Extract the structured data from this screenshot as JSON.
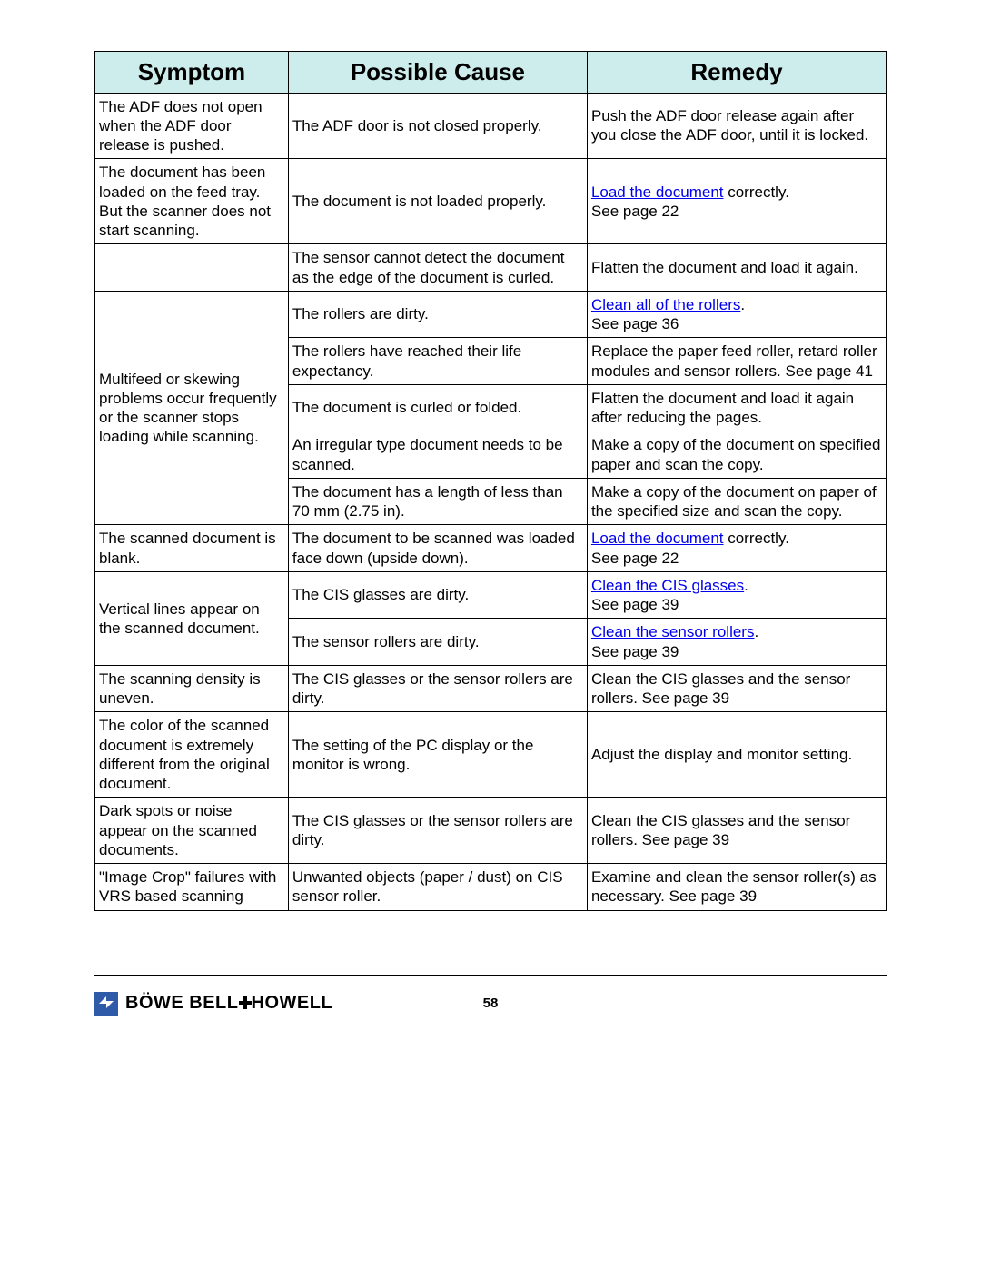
{
  "table": {
    "header_bg": "#cdecec",
    "columns": [
      "Symptom",
      "Possible Cause",
      "Remedy"
    ],
    "blocks": [
      {
        "symptom": "The ADF does not open when the ADF door release is pushed.",
        "rows": [
          {
            "cause": "The ADF door is not closed properly.",
            "remedy": "Push the ADF door release again after you close the ADF door, until it is locked."
          }
        ]
      },
      {
        "symptom": "The document has been loaded on the feed tray. But the scanner does not start scanning.",
        "rows": [
          {
            "cause": "The document is not loaded properly.",
            "remedy_link": "Load the document",
            "remedy_suffix": " correctly.",
            "remedy_line2": "See page 22"
          }
        ]
      },
      {
        "symptom": "",
        "rows": [
          {
            "cause": "The sensor cannot detect the document as the edge of the document is curled.",
            "remedy": "Flatten the document and load it again."
          }
        ]
      },
      {
        "symptom": "Multifeed or skewing problems occur frequently or the scanner stops loading while scanning.",
        "rows": [
          {
            "cause": "The rollers are dirty.",
            "remedy_link": "Clean all of the rollers",
            "remedy_suffix": ".",
            "remedy_line2": "See page 36"
          },
          {
            "cause": "The rollers have reached their life expectancy.",
            "remedy": "Replace the paper feed roller, retard roller modules and sensor rollers.  See page 41"
          },
          {
            "cause": "The document is curled or folded.",
            "remedy": "Flatten the document and load it again after reducing the pages."
          },
          {
            "cause": "An irregular type document needs to be scanned.",
            "remedy": "Make a copy of the document on specified paper and scan the copy."
          },
          {
            "cause": "The document has a length of less than 70 mm (2.75 in).",
            "remedy": "Make a copy of the document on paper of the specified size and scan the copy."
          }
        ]
      },
      {
        "symptom": "The scanned document is blank.",
        "rows": [
          {
            "cause": "The document to be scanned was loaded face down (upside down).",
            "remedy_link": "Load the document",
            "remedy_suffix": " correctly.",
            "remedy_line2": "See page 22"
          }
        ]
      },
      {
        "symptom": "Vertical lines appear on the scanned document.",
        "rows": [
          {
            "cause": "The CIS glasses are dirty.",
            "remedy_link": "Clean the CIS glasses",
            "remedy_suffix": ".",
            "remedy_line2": "See page 39"
          },
          {
            "cause": "The sensor rollers are dirty.",
            "remedy_link": "Clean the sensor rollers",
            "remedy_suffix": ".",
            "remedy_line2": "See page 39"
          }
        ]
      },
      {
        "symptom": "The scanning density is uneven.",
        "rows": [
          {
            "cause": "The CIS glasses or the sensor rollers are dirty.",
            "remedy": "Clean the CIS glasses and the sensor rollers.  See page 39"
          }
        ]
      },
      {
        "symptom": "The color of the scanned document is extremely different from the original document.",
        "rows": [
          {
            "cause": "The setting of the PC display or the monitor is wrong.",
            "remedy": "Adjust the display and monitor setting."
          }
        ]
      },
      {
        "symptom": "Dark spots or noise appear on the scanned documents.",
        "rows": [
          {
            "cause": "The CIS glasses or the sensor rollers are dirty.",
            "remedy": "Clean the CIS glasses and the sensor rollers.  See page 39"
          }
        ]
      },
      {
        "symptom": "\"Image Crop\" failures with VRS based scanning",
        "rows": [
          {
            "cause": "Unwanted objects (paper / dust) on CIS sensor roller.",
            "remedy": "Examine and clean the sensor roller(s) as necessary. See page 39"
          }
        ]
      }
    ]
  },
  "footer": {
    "page_number": "58",
    "brand_pre": "BÖWE BELL",
    "brand_post": "HOWELL"
  }
}
